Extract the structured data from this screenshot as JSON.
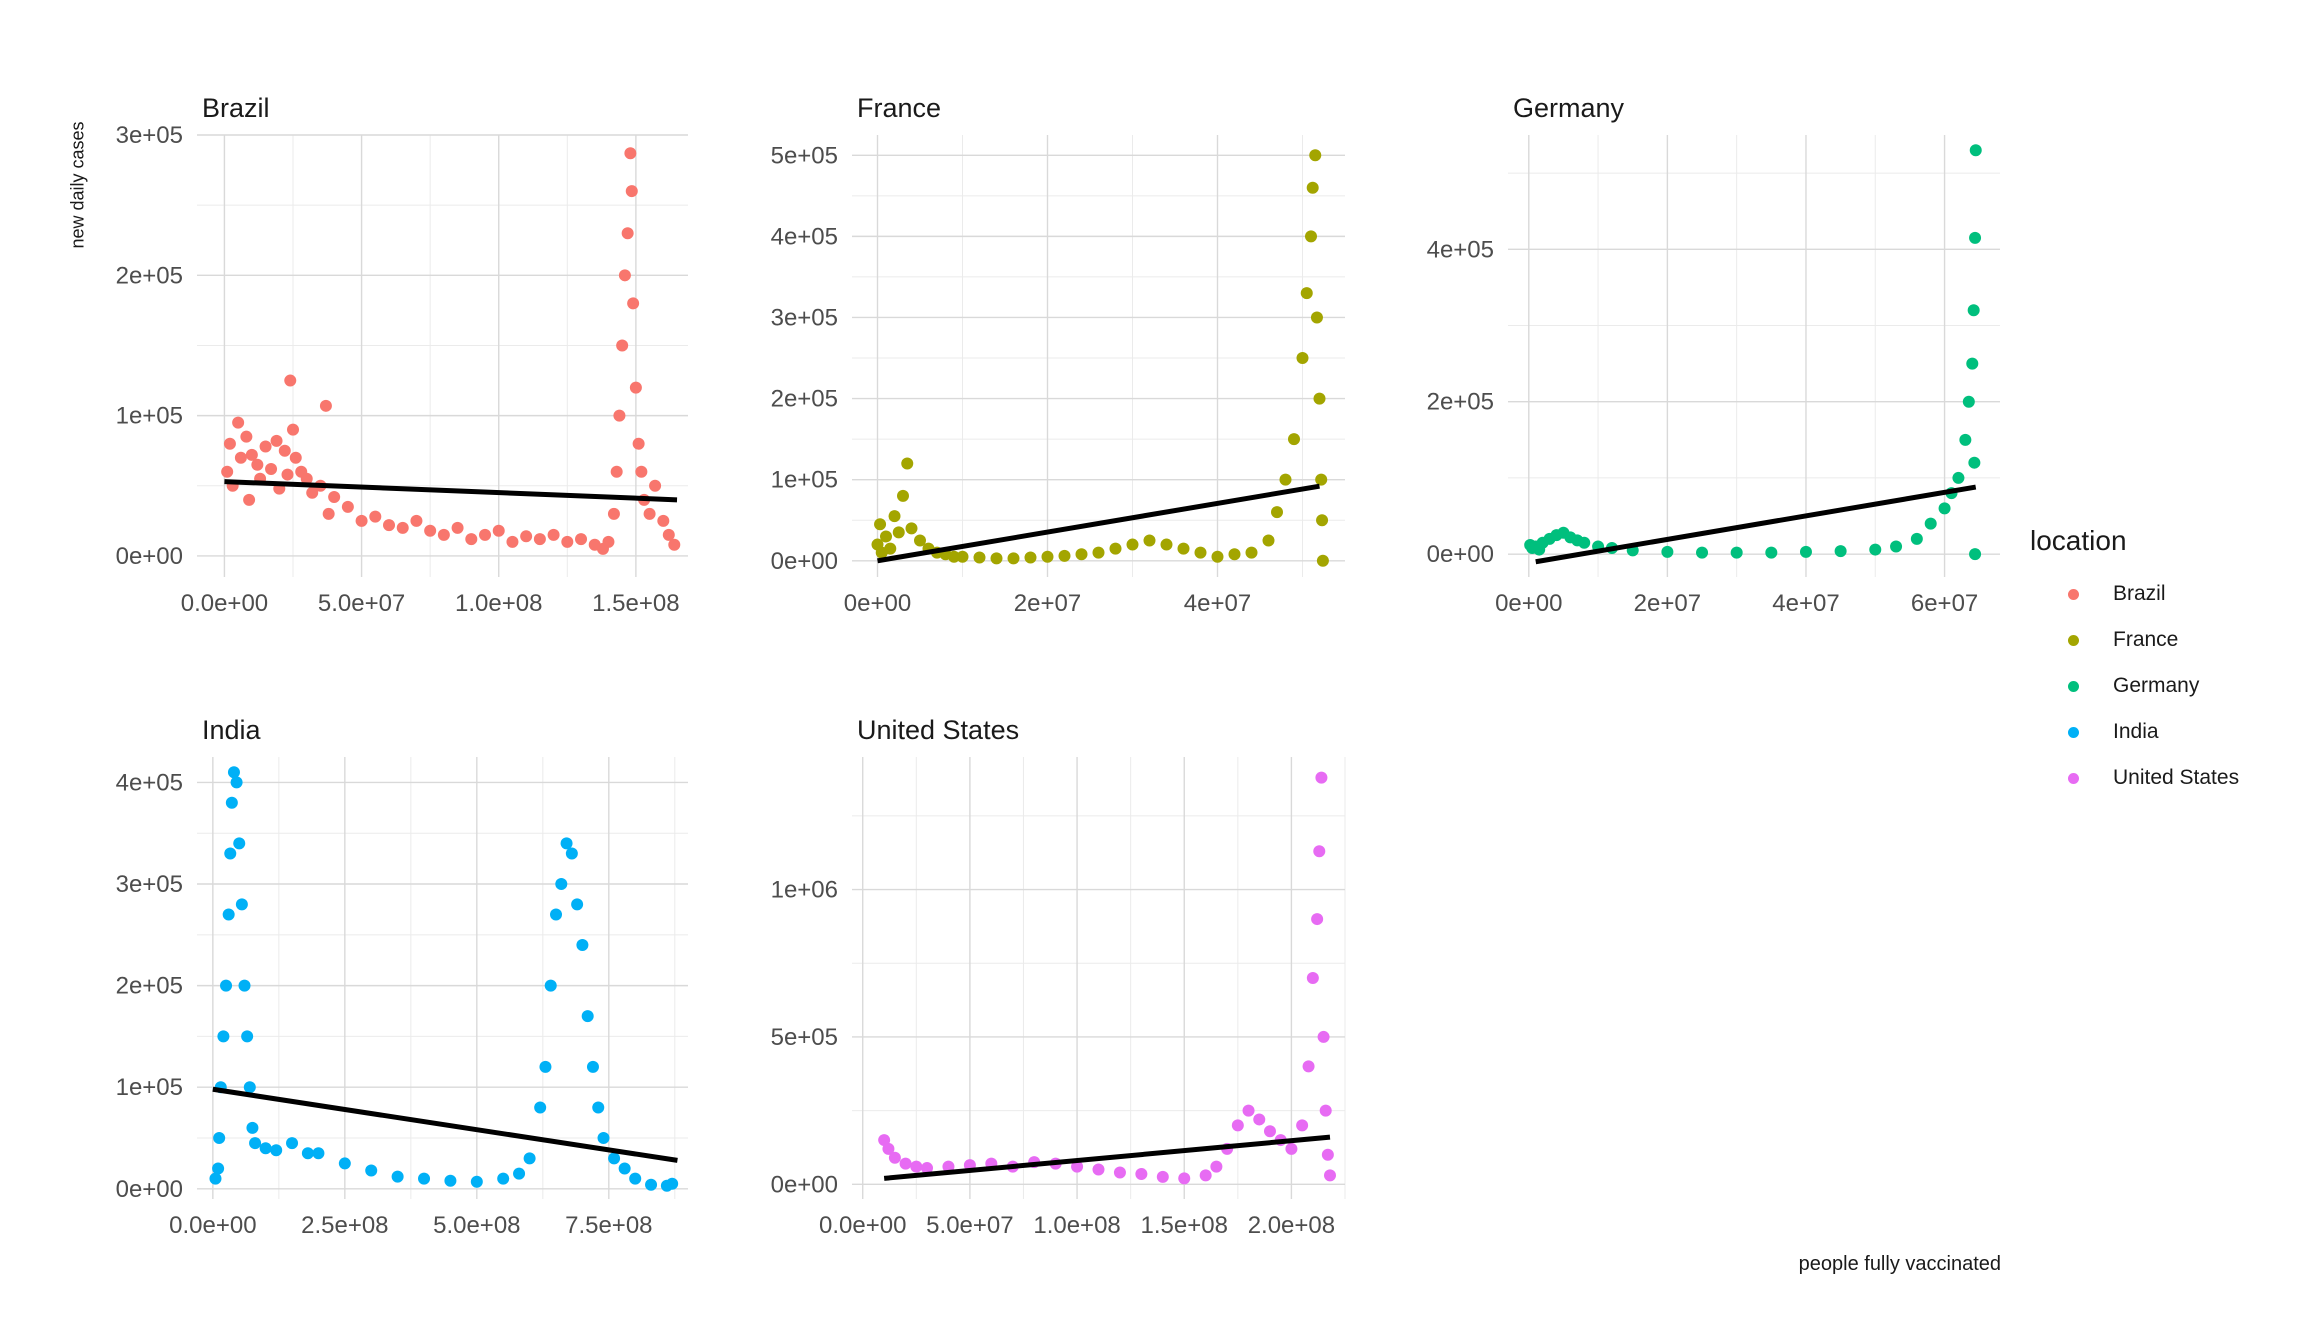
{
  "chart_data": [
    {
      "type": "scatter",
      "title": "Brazil",
      "color": "#F8766D",
      "xlim": [
        -10000000.0,
        169000000.0
      ],
      "ylim": [
        -15000.0,
        300000.0
      ],
      "xticks": [
        0,
        50000000.0,
        100000000.0,
        150000000.0
      ],
      "xtick_labels": [
        "0.0e+00",
        "5.0e+07",
        "1.0e+08",
        "1.5e+08"
      ],
      "yticks": [
        0,
        100000.0,
        200000.0,
        300000.0
      ],
      "ytick_labels": [
        "0e+00",
        "1e+05",
        "2e+05",
        "3e+05"
      ],
      "trend": {
        "x": [
          0,
          165000000.0
        ],
        "y": [
          53000,
          40000
        ]
      },
      "points": [
        [
          1000000.0,
          60000
        ],
        [
          2000000.0,
          80000
        ],
        [
          3000000.0,
          50000
        ],
        [
          5000000.0,
          95000
        ],
        [
          6000000.0,
          70000
        ],
        [
          8000000.0,
          85000
        ],
        [
          9000000.0,
          40000
        ],
        [
          10000000.0,
          72000
        ],
        [
          12000000.0,
          65000
        ],
        [
          13000000.0,
          55000
        ],
        [
          15000000.0,
          78000
        ],
        [
          17000000.0,
          62000
        ],
        [
          19000000.0,
          82000
        ],
        [
          20000000.0,
          48000
        ],
        [
          22000000.0,
          75000
        ],
        [
          23000000.0,
          58000
        ],
        [
          24000000.0,
          125000
        ],
        [
          25000000.0,
          90000
        ],
        [
          26000000.0,
          70000
        ],
        [
          28000000.0,
          60000
        ],
        [
          30000000.0,
          55000
        ],
        [
          32000000.0,
          45000
        ],
        [
          35000000.0,
          50000
        ],
        [
          37000000.0,
          107000
        ],
        [
          38000000.0,
          30000
        ],
        [
          40000000.0,
          42000
        ],
        [
          45000000.0,
          35000
        ],
        [
          50000000.0,
          25000
        ],
        [
          55000000.0,
          28000
        ],
        [
          60000000.0,
          22000
        ],
        [
          65000000.0,
          20000
        ],
        [
          70000000.0,
          25000
        ],
        [
          75000000.0,
          18000
        ],
        [
          80000000.0,
          15000
        ],
        [
          85000000.0,
          20000
        ],
        [
          90000000.0,
          12000
        ],
        [
          95000000.0,
          15000
        ],
        [
          100000000.0,
          18000
        ],
        [
          105000000.0,
          10000
        ],
        [
          110000000.0,
          14000
        ],
        [
          115000000.0,
          12000
        ],
        [
          120000000.0,
          15000
        ],
        [
          125000000.0,
          10000
        ],
        [
          130000000.0,
          12000
        ],
        [
          135000000.0,
          8000
        ],
        [
          138000000.0,
          5000
        ],
        [
          140000000.0,
          10000
        ],
        [
          142000000.0,
          30000
        ],
        [
          143000000.0,
          60000
        ],
        [
          144000000.0,
          100000
        ],
        [
          145000000.0,
          150000
        ],
        [
          146000000.0,
          200000
        ],
        [
          147000000.0,
          230000
        ],
        [
          148000000.0,
          287000
        ],
        [
          148500000.0,
          260000
        ],
        [
          149000000.0,
          180000
        ],
        [
          150000000.0,
          120000
        ],
        [
          151000000.0,
          80000
        ],
        [
          152000000.0,
          60000
        ],
        [
          153000000.0,
          40000
        ],
        [
          155000000.0,
          30000
        ],
        [
          157000000.0,
          50000
        ],
        [
          160000000.0,
          25000
        ],
        [
          162000000.0,
          15000
        ],
        [
          164000000.0,
          8000
        ]
      ]
    },
    {
      "type": "scatter",
      "title": "France",
      "color": "#A3A500",
      "xlim": [
        -3000000.0,
        55000000.0
      ],
      "ylim": [
        -20000.0,
        525000.0
      ],
      "xticks": [
        0,
        20000000.0,
        40000000.0
      ],
      "xtick_labels": [
        "0e+00",
        "2e+07",
        "4e+07"
      ],
      "yticks": [
        0,
        100000.0,
        200000.0,
        300000.0,
        400000.0,
        500000.0
      ],
      "ytick_labels": [
        "0e+00",
        "1e+05",
        "2e+05",
        "3e+05",
        "4e+05",
        "5e+05"
      ],
      "trend": {
        "x": [
          0,
          52000000.0
        ],
        "y": [
          0,
          92000
        ]
      },
      "points": [
        [
          0.0,
          20000
        ],
        [
          300000.0,
          45000
        ],
        [
          500000.0,
          10000
        ],
        [
          1000000.0,
          30000
        ],
        [
          1500000.0,
          15000
        ],
        [
          2000000.0,
          55000
        ],
        [
          2500000.0,
          35000
        ],
        [
          3000000.0,
          80000
        ],
        [
          3500000.0,
          120000
        ],
        [
          4000000.0,
          40000
        ],
        [
          5000000.0,
          25000
        ],
        [
          6000000.0,
          15000
        ],
        [
          7000000.0,
          10000
        ],
        [
          8000000.0,
          8000
        ],
        [
          9000000.0,
          5000
        ],
        [
          10000000.0,
          5000
        ],
        [
          12000000.0,
          4000
        ],
        [
          14000000.0,
          3000
        ],
        [
          16000000.0,
          3000
        ],
        [
          18000000.0,
          4000
        ],
        [
          20000000.0,
          5000
        ],
        [
          22000000.0,
          6000
        ],
        [
          24000000.0,
          8000
        ],
        [
          26000000.0,
          10000
        ],
        [
          28000000.0,
          15000
        ],
        [
          30000000.0,
          20000
        ],
        [
          32000000.0,
          25000
        ],
        [
          34000000.0,
          20000
        ],
        [
          36000000.0,
          15000
        ],
        [
          38000000.0,
          10000
        ],
        [
          40000000.0,
          5000
        ],
        [
          42000000.0,
          8000
        ],
        [
          44000000.0,
          10000
        ],
        [
          46000000.0,
          25000
        ],
        [
          47000000.0,
          60000
        ],
        [
          48000000.0,
          100000
        ],
        [
          49000000.0,
          150000
        ],
        [
          50000000.0,
          250000
        ],
        [
          50500000.0,
          330000
        ],
        [
          51000000.0,
          400000
        ],
        [
          51200000.0,
          460000
        ],
        [
          51500000.0,
          500000
        ],
        [
          51700000.0,
          300000
        ],
        [
          52000000.0,
          200000
        ],
        [
          52200000.0,
          100000
        ],
        [
          52300000.0,
          50000
        ],
        [
          52400000.0,
          0
        ]
      ]
    },
    {
      "type": "scatter",
      "title": "Germany",
      "color": "#00BF7D",
      "xlim": [
        -3000000.0,
        68000000.0
      ],
      "ylim": [
        -30000.0,
        550000.0
      ],
      "xticks": [
        0,
        20000000.0,
        40000000.0,
        60000000.0
      ],
      "xtick_labels": [
        "0e+00",
        "2e+07",
        "4e+07",
        "6e+07"
      ],
      "yticks": [
        0,
        200000.0,
        400000.0
      ],
      "ytick_labels": [
        "0e+00",
        "2e+05",
        "4e+05"
      ],
      "trend": {
        "x": [
          1000000.0,
          64500000.0
        ],
        "y": [
          -10000,
          88000
        ]
      },
      "points": [
        [
          200000.0,
          12000
        ],
        [
          500000.0,
          8000
        ],
        [
          1000000.0,
          10000
        ],
        [
          1500000.0,
          6000
        ],
        [
          2000000.0,
          15000
        ],
        [
          3000000.0,
          20000
        ],
        [
          4000000.0,
          25000
        ],
        [
          5000000.0,
          28000
        ],
        [
          6000000.0,
          22000
        ],
        [
          7000000.0,
          18000
        ],
        [
          8000000.0,
          15000
        ],
        [
          10000000.0,
          10000
        ],
        [
          12000000.0,
          8000
        ],
        [
          15000000.0,
          5000
        ],
        [
          20000000.0,
          3000
        ],
        [
          25000000.0,
          2000
        ],
        [
          30000000.0,
          2000
        ],
        [
          35000000.0,
          2000
        ],
        [
          40000000.0,
          3000
        ],
        [
          45000000.0,
          4000
        ],
        [
          50000000.0,
          6000
        ],
        [
          53000000.0,
          10000
        ],
        [
          56000000.0,
          20000
        ],
        [
          58000000.0,
          40000
        ],
        [
          60000000.0,
          60000
        ],
        [
          61000000.0,
          80000
        ],
        [
          62000000.0,
          100000
        ],
        [
          63000000.0,
          150000
        ],
        [
          63500000.0,
          200000
        ],
        [
          64000000.0,
          250000
        ],
        [
          64200000.0,
          320000
        ],
        [
          64400000.0,
          415000
        ],
        [
          64500000.0,
          530000
        ],
        [
          64300000.0,
          120000
        ],
        [
          64400000.0,
          0
        ]
      ]
    },
    {
      "type": "scatter",
      "title": "India",
      "color": "#00B0F6",
      "xlim": [
        -30000000.0,
        900000000.0
      ],
      "ylim": [
        -10000.0,
        425000.0
      ],
      "xticks": [
        0,
        250000000.0,
        500000000.0,
        750000000.0
      ],
      "xtick_labels": [
        "0.0e+00",
        "2.5e+08",
        "5.0e+08",
        "7.5e+08"
      ],
      "yticks": [
        0,
        100000.0,
        200000.0,
        300000.0,
        400000.0
      ],
      "ytick_labels": [
        "0e+00",
        "1e+05",
        "2e+05",
        "3e+05",
        "4e+05"
      ],
      "trend": {
        "x": [
          0,
          880000000.0
        ],
        "y": [
          98000,
          28000
        ]
      },
      "points": [
        [
          5000000.0,
          10000
        ],
        [
          10000000.0,
          20000
        ],
        [
          12000000.0,
          50000
        ],
        [
          15000000.0,
          100000
        ],
        [
          20000000.0,
          150000
        ],
        [
          25000000.0,
          200000
        ],
        [
          30000000.0,
          270000
        ],
        [
          33000000.0,
          330000
        ],
        [
          36000000.0,
          380000
        ],
        [
          40000000.0,
          410000
        ],
        [
          45000000.0,
          400000
        ],
        [
          50000000.0,
          340000
        ],
        [
          55000000.0,
          280000
        ],
        [
          60000000.0,
          200000
        ],
        [
          65000000.0,
          150000
        ],
        [
          70000000.0,
          100000
        ],
        [
          75000000.0,
          60000
        ],
        [
          80000000.0,
          45000
        ],
        [
          100000000.0,
          40000
        ],
        [
          120000000.0,
          38000
        ],
        [
          150000000.0,
          45000
        ],
        [
          180000000.0,
          35000
        ],
        [
          200000000.0,
          35000
        ],
        [
          250000000.0,
          25000
        ],
        [
          300000000.0,
          18000
        ],
        [
          350000000.0,
          12000
        ],
        [
          400000000.0,
          10000
        ],
        [
          450000000.0,
          8000
        ],
        [
          500000000.0,
          7000
        ],
        [
          550000000.0,
          10000
        ],
        [
          580000000.0,
          15000
        ],
        [
          600000000.0,
          30000
        ],
        [
          620000000.0,
          80000
        ],
        [
          630000000.0,
          120000
        ],
        [
          640000000.0,
          200000
        ],
        [
          650000000.0,
          270000
        ],
        [
          660000000.0,
          300000
        ],
        [
          670000000.0,
          340000
        ],
        [
          680000000.0,
          330000
        ],
        [
          690000000.0,
          280000
        ],
        [
          700000000.0,
          240000
        ],
        [
          710000000.0,
          170000
        ],
        [
          720000000.0,
          120000
        ],
        [
          730000000.0,
          80000
        ],
        [
          740000000.0,
          50000
        ],
        [
          760000000.0,
          30000
        ],
        [
          780000000.0,
          20000
        ],
        [
          800000000.0,
          10000
        ],
        [
          830000000.0,
          4000
        ],
        [
          860000000.0,
          3000
        ],
        [
          870000000.0,
          5000
        ]
      ]
    },
    {
      "type": "scatter",
      "title": "United States",
      "color": "#E76BF3",
      "xlim": [
        -5000000.0,
        225000000.0
      ],
      "ylim": [
        -50000.0,
        1450000.0
      ],
      "xticks": [
        0,
        50000000.0,
        100000000.0,
        150000000.0,
        200000000.0
      ],
      "xtick_labels": [
        "0.0e+00",
        "5.0e+07",
        "1.0e+08",
        "1.5e+08",
        "2.0e+08"
      ],
      "yticks": [
        0,
        500000.0,
        1000000.0
      ],
      "ytick_labels": [
        "0e+00",
        "5e+05",
        "1e+06"
      ],
      "trend": {
        "x": [
          10000000.0,
          218000000.0
        ],
        "y": [
          20000,
          160000
        ]
      },
      "points": [
        [
          10000000.0,
          150000
        ],
        [
          12000000.0,
          120000
        ],
        [
          15000000.0,
          90000
        ],
        [
          20000000.0,
          70000
        ],
        [
          25000000.0,
          60000
        ],
        [
          30000000.0,
          55000
        ],
        [
          40000000.0,
          60000
        ],
        [
          50000000.0,
          65000
        ],
        [
          60000000.0,
          70000
        ],
        [
          70000000.0,
          60000
        ],
        [
          80000000.0,
          75000
        ],
        [
          90000000.0,
          70000
        ],
        [
          100000000.0,
          60000
        ],
        [
          110000000.0,
          50000
        ],
        [
          120000000.0,
          40000
        ],
        [
          130000000.0,
          35000
        ],
        [
          140000000.0,
          25000
        ],
        [
          150000000.0,
          20000
        ],
        [
          160000000.0,
          30000
        ],
        [
          165000000.0,
          60000
        ],
        [
          170000000.0,
          120000
        ],
        [
          175000000.0,
          200000
        ],
        [
          180000000.0,
          250000
        ],
        [
          185000000.0,
          220000
        ],
        [
          190000000.0,
          180000
        ],
        [
          195000000.0,
          150000
        ],
        [
          200000000.0,
          120000
        ],
        [
          205000000.0,
          200000
        ],
        [
          208000000.0,
          400000
        ],
        [
          210000000.0,
          700000
        ],
        [
          212000000.0,
          900000
        ],
        [
          213000000.0,
          1130000
        ],
        [
          214000000.0,
          1380000
        ],
        [
          215000000.0,
          500000
        ],
        [
          216000000.0,
          250000
        ],
        [
          217000000.0,
          100000
        ],
        [
          218000000.0,
          30000
        ]
      ]
    }
  ],
  "axis_labels": {
    "y": "new daily cases",
    "x": "people fully vaccinated"
  },
  "legend": {
    "title": "location",
    "items": [
      {
        "label": "Brazil",
        "color": "#F8766D"
      },
      {
        "label": "France",
        "color": "#A3A500"
      },
      {
        "label": "Germany",
        "color": "#00BF7D"
      },
      {
        "label": "India",
        "color": "#00B0F6"
      },
      {
        "label": "United States",
        "color": "#E76BF3"
      }
    ]
  }
}
